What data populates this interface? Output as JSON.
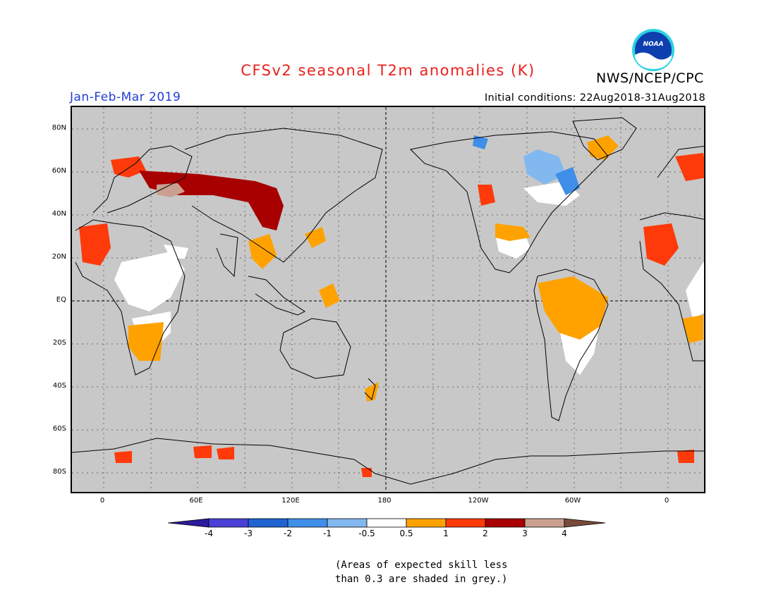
{
  "header": {
    "title": "CFSv2 seasonal T2m anomalies (K)",
    "agency": "NWS/NCEP/CPC",
    "period": "Jan-Feb-Mar 2019",
    "initial_conditions": "Initial conditions: 22Aug2018-31Aug2018",
    "logo_text": "NOAA"
  },
  "map": {
    "lat_labels": [
      "80N",
      "60N",
      "40N",
      "20N",
      "EQ",
      "20S",
      "40S",
      "60S",
      "80S"
    ],
    "lon_labels": [
      "0",
      "60E",
      "120E",
      "180",
      "120W",
      "60W",
      "0"
    ],
    "background_color": "#c8c8c8"
  },
  "colorbar": {
    "tick_labels": [
      "-4",
      "-3",
      "-2",
      "-1",
      "-0.5",
      "0.5",
      "1",
      "2",
      "3",
      "4"
    ],
    "colors": [
      "#2a1b9b",
      "#4a3fd6",
      "#1f63d1",
      "#3f8ee8",
      "#82b8f0",
      "#ffffff",
      "#ffa200",
      "#ff3a0a",
      "#a80000",
      "#c9a090",
      "#7a4a3a"
    ]
  },
  "footnote": {
    "line1": "(Areas of expected skill less",
    "line2": "than 0.3 are shaded in grey.)"
  }
}
